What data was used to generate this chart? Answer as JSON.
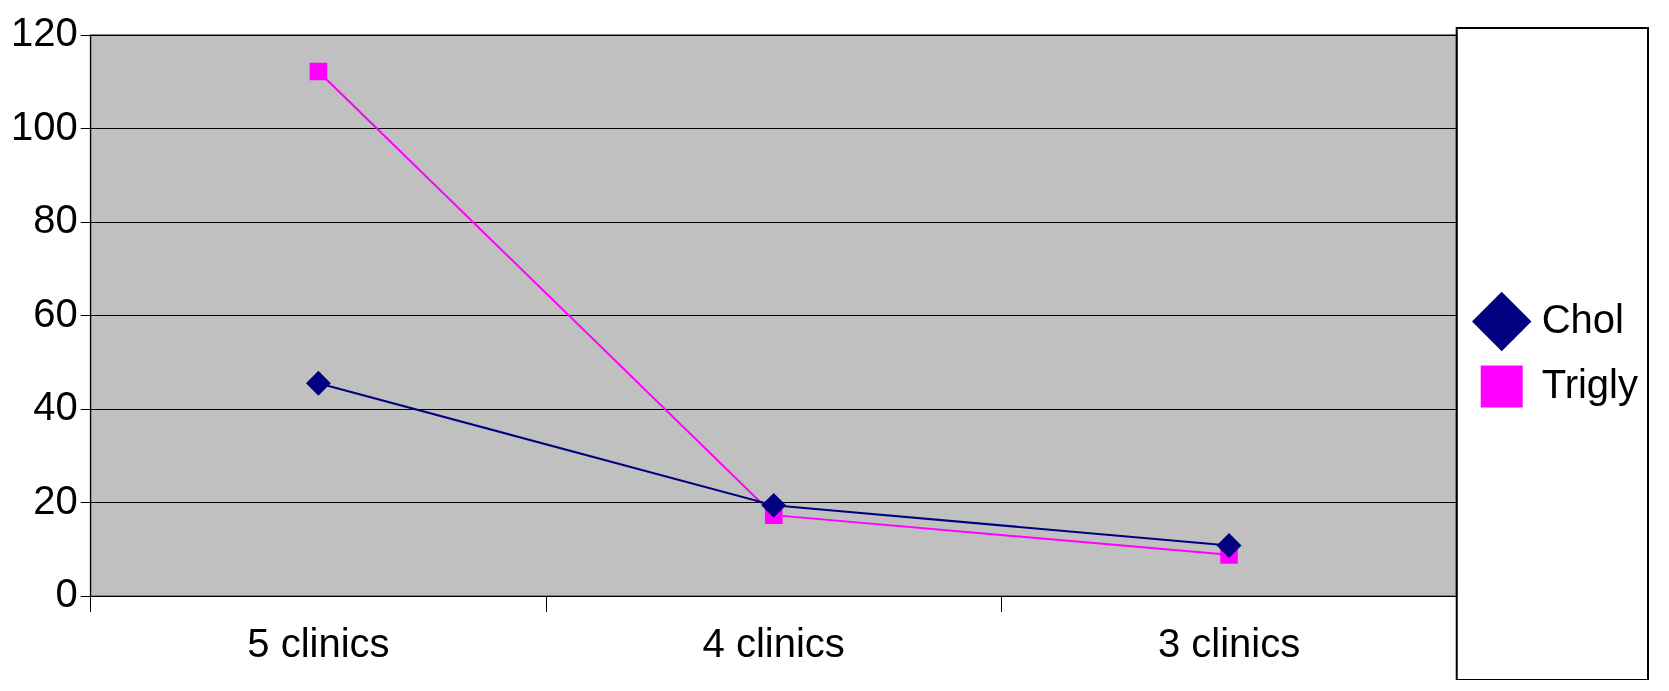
{
  "chart_data": {
    "type": "line",
    "categories": [
      "5 clinics",
      "4 clinics",
      "3 clinics"
    ],
    "series": [
      {
        "name": "Chol",
        "color": "#000080",
        "marker": "diamond",
        "values": [
          45.5,
          19.4,
          10.8
        ]
      },
      {
        "name": "Trigly",
        "color": "#ff00ff",
        "marker": "square",
        "values": [
          112.2,
          17.3,
          8.8
        ]
      }
    ],
    "ylim": [
      0,
      120
    ],
    "yticks": [
      0,
      20,
      40,
      60,
      80,
      100,
      120
    ],
    "grid": "y",
    "legend": "right",
    "line_style": "solid"
  }
}
